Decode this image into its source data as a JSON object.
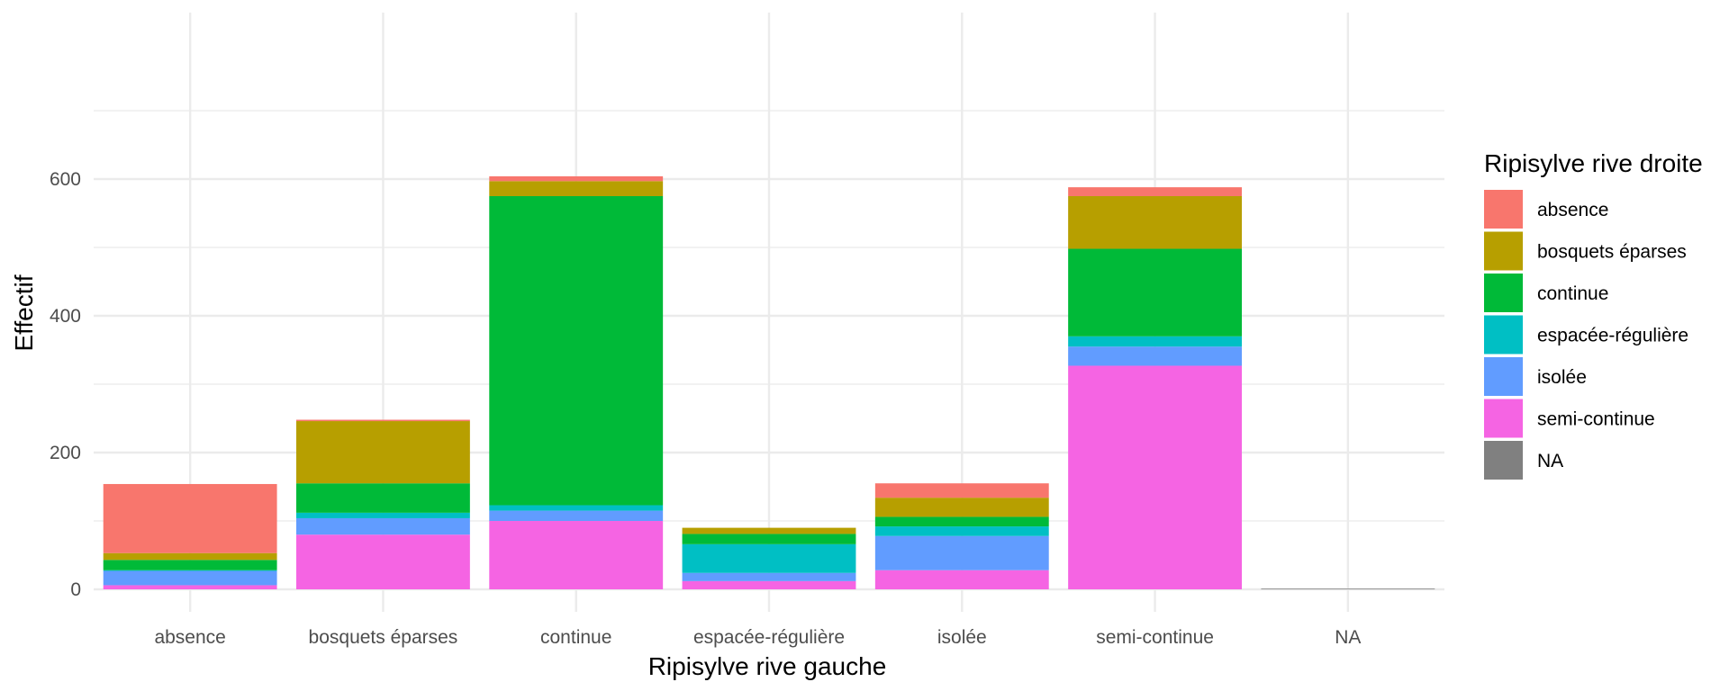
{
  "chart_data": {
    "type": "bar",
    "stacked": true,
    "xlabel": "Ripisylve rive gauche",
    "ylabel": "Effectif",
    "legend_title": "Ripisylve rive droite",
    "legend_position": "right",
    "grid": true,
    "ylim": [
      0,
      630
    ],
    "yticks": [
      0,
      200,
      400,
      600
    ],
    "categories": [
      "absence",
      "bosquets éparses",
      "continue",
      "espacée-régulière",
      "isolée",
      "semi-continue",
      "NA"
    ],
    "series": [
      {
        "name": "absence",
        "color": "#F8766D",
        "values": [
          101,
          2,
          7,
          0,
          21,
          13,
          0
        ]
      },
      {
        "name": "bosquets éparses",
        "color": "#B79F00",
        "values": [
          10,
          91,
          22,
          9,
          28,
          77,
          0
        ]
      },
      {
        "name": "continue",
        "color": "#00BA38",
        "values": [
          15,
          43,
          452,
          15,
          14,
          128,
          0
        ]
      },
      {
        "name": "espacée-régulière",
        "color": "#00BFC4",
        "values": [
          1,
          8,
          8,
          42,
          14,
          15,
          0
        ]
      },
      {
        "name": "isolée",
        "color": "#619CFF",
        "values": [
          21,
          24,
          15,
          12,
          50,
          28,
          0
        ]
      },
      {
        "name": "semi-continue",
        "color": "#F564E3",
        "values": [
          6,
          80,
          100,
          12,
          28,
          327,
          0
        ]
      },
      {
        "name": "NA",
        "color": "#808080",
        "values": [
          0,
          0,
          0,
          0,
          0,
          0,
          1
        ]
      }
    ]
  }
}
